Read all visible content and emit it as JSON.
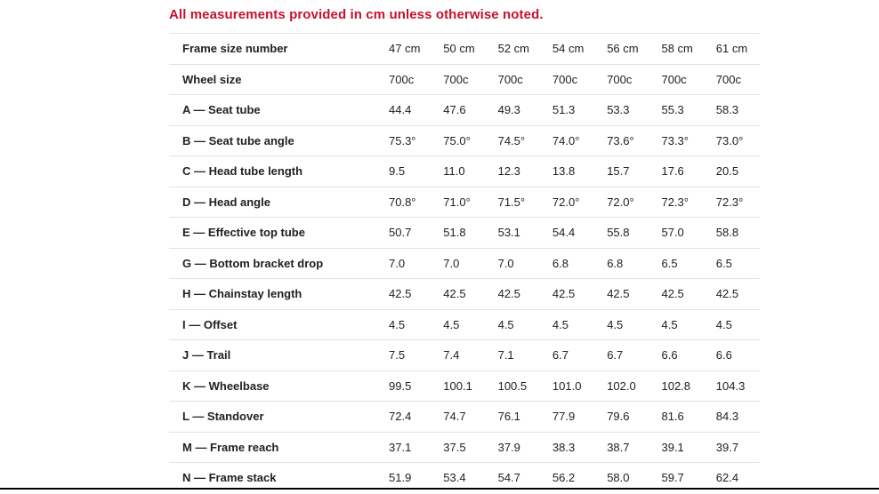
{
  "page": {
    "note": "All measurements provided in cm unless otherwise noted.",
    "note_color": "#c8102e",
    "accent_divider_color": "#e2e2e2",
    "bottom_edge_color": "#000000"
  },
  "table": {
    "columns": [
      "47 cm",
      "50 cm",
      "52 cm",
      "54 cm",
      "56 cm",
      "58 cm",
      "61 cm"
    ],
    "rows": [
      {
        "label": "Frame size number",
        "values": [
          "47 cm",
          "50 cm",
          "52 cm",
          "54 cm",
          "56 cm",
          "58 cm",
          "61 cm"
        ]
      },
      {
        "label": "Wheel size",
        "values": [
          "700c",
          "700c",
          "700c",
          "700c",
          "700c",
          "700c",
          "700c"
        ]
      },
      {
        "label": "A — Seat tube",
        "values": [
          "44.4",
          "47.6",
          "49.3",
          "51.3",
          "53.3",
          "55.3",
          "58.3"
        ]
      },
      {
        "label": "B — Seat tube angle",
        "values": [
          "75.3°",
          "75.0°",
          "74.5°",
          "74.0°",
          "73.6°",
          "73.3°",
          "73.0°"
        ]
      },
      {
        "label": "C — Head tube length",
        "values": [
          "9.5",
          "11.0",
          "12.3",
          "13.8",
          "15.7",
          "17.6",
          "20.5"
        ]
      },
      {
        "label": "D — Head angle",
        "values": [
          "70.8°",
          "71.0°",
          "71.5°",
          "72.0°",
          "72.0°",
          "72.3°",
          "72.3°"
        ]
      },
      {
        "label": "E — Effective top tube",
        "values": [
          "50.7",
          "51.8",
          "53.1",
          "54.4",
          "55.8",
          "57.0",
          "58.8"
        ]
      },
      {
        "label": "G — Bottom bracket drop",
        "values": [
          "7.0",
          "7.0",
          "7.0",
          "6.8",
          "6.8",
          "6.5",
          "6.5"
        ]
      },
      {
        "label": "H — Chainstay length",
        "values": [
          "42.5",
          "42.5",
          "42.5",
          "42.5",
          "42.5",
          "42.5",
          "42.5"
        ]
      },
      {
        "label": "I — Offset",
        "values": [
          "4.5",
          "4.5",
          "4.5",
          "4.5",
          "4.5",
          "4.5",
          "4.5"
        ]
      },
      {
        "label": "J — Trail",
        "values": [
          "7.5",
          "7.4",
          "7.1",
          "6.7",
          "6.7",
          "6.6",
          "6.6"
        ]
      },
      {
        "label": "K — Wheelbase",
        "values": [
          "99.5",
          "100.1",
          "100.5",
          "101.0",
          "102.0",
          "102.8",
          "104.3"
        ]
      },
      {
        "label": "L — Standover",
        "values": [
          "72.4",
          "74.7",
          "76.1",
          "77.9",
          "79.6",
          "81.6",
          "84.3"
        ]
      },
      {
        "label": "M — Frame reach",
        "values": [
          "37.1",
          "37.5",
          "37.9",
          "38.3",
          "38.7",
          "39.1",
          "39.7"
        ]
      },
      {
        "label": "N — Frame stack",
        "values": [
          "51.9",
          "53.4",
          "54.7",
          "56.2",
          "58.0",
          "59.7",
          "62.4"
        ]
      }
    ]
  }
}
